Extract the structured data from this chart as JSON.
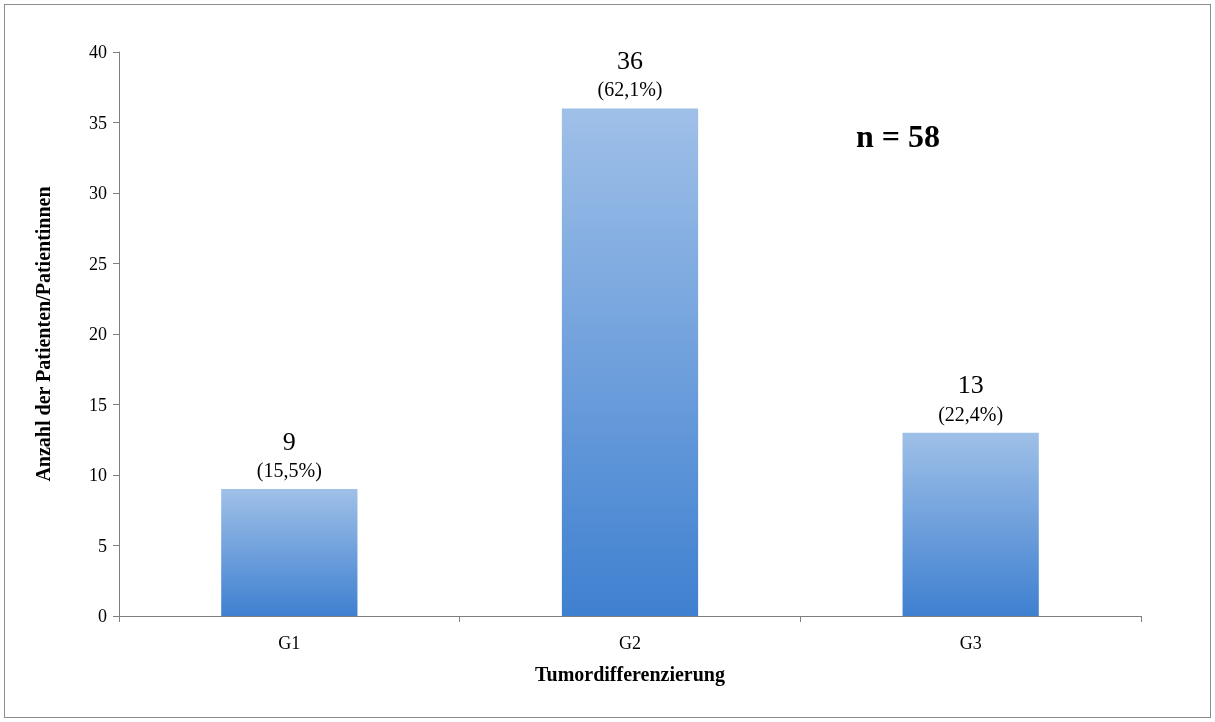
{
  "chart_data": {
    "type": "bar",
    "xlabel": "Tumordifferenzierung",
    "ylabel": "Anzahl der Patienten/Patientinnen",
    "categories": [
      "G1",
      "G2",
      "G3"
    ],
    "values": [
      9,
      36,
      13
    ],
    "value_labels": [
      "9\n(15,5%)",
      "36\n(62,1%)",
      "13\n(22,4%)"
    ],
    "color": "#3f80d0",
    "ylim": [
      0,
      40
    ],
    "yticks": [
      0,
      5,
      10,
      15,
      20,
      25,
      30,
      35,
      40
    ],
    "grid": false,
    "annotations": [
      "n = 58"
    ]
  }
}
